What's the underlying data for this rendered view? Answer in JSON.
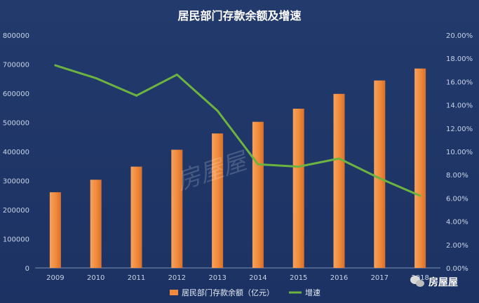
{
  "chart_data": {
    "type": "bar+line",
    "title": "居民部门存款余额及增速",
    "categories": [
      "2009",
      "2010",
      "2011",
      "2012",
      "2013",
      "2014",
      "2015",
      "2016",
      "2017",
      "2018"
    ],
    "series": [
      {
        "name": "居民部门存款余额（亿元）",
        "type": "bar",
        "axis": "left",
        "color": "#f08a3c",
        "values": [
          260000,
          303000,
          348000,
          406000,
          462000,
          502000,
          547000,
          598000,
          644000,
          685000
        ]
      },
      {
        "name": "增速",
        "type": "line",
        "axis": "right",
        "color": "#6db33f",
        "values": [
          0.174,
          0.163,
          0.148,
          0.166,
          0.135,
          0.089,
          0.087,
          0.094,
          0.077,
          0.062
        ]
      }
    ],
    "y_left": {
      "range": [
        0,
        800000
      ],
      "ticks": [
        "0",
        "100000",
        "200000",
        "300000",
        "400000",
        "500000",
        "600000",
        "700000",
        "800000"
      ]
    },
    "y_right": {
      "range": [
        0,
        0.2
      ],
      "ticks": [
        "0.00%",
        "2.00%",
        "4.00%",
        "6.00%",
        "8.00%",
        "10.00%",
        "12.00%",
        "14.00%",
        "16.00%",
        "18.00%",
        "20.00%"
      ]
    },
    "grid": false,
    "legend_position": "bottom"
  },
  "watermark": {
    "center_text": "房屋屋",
    "brand_text": "房屋屋"
  }
}
